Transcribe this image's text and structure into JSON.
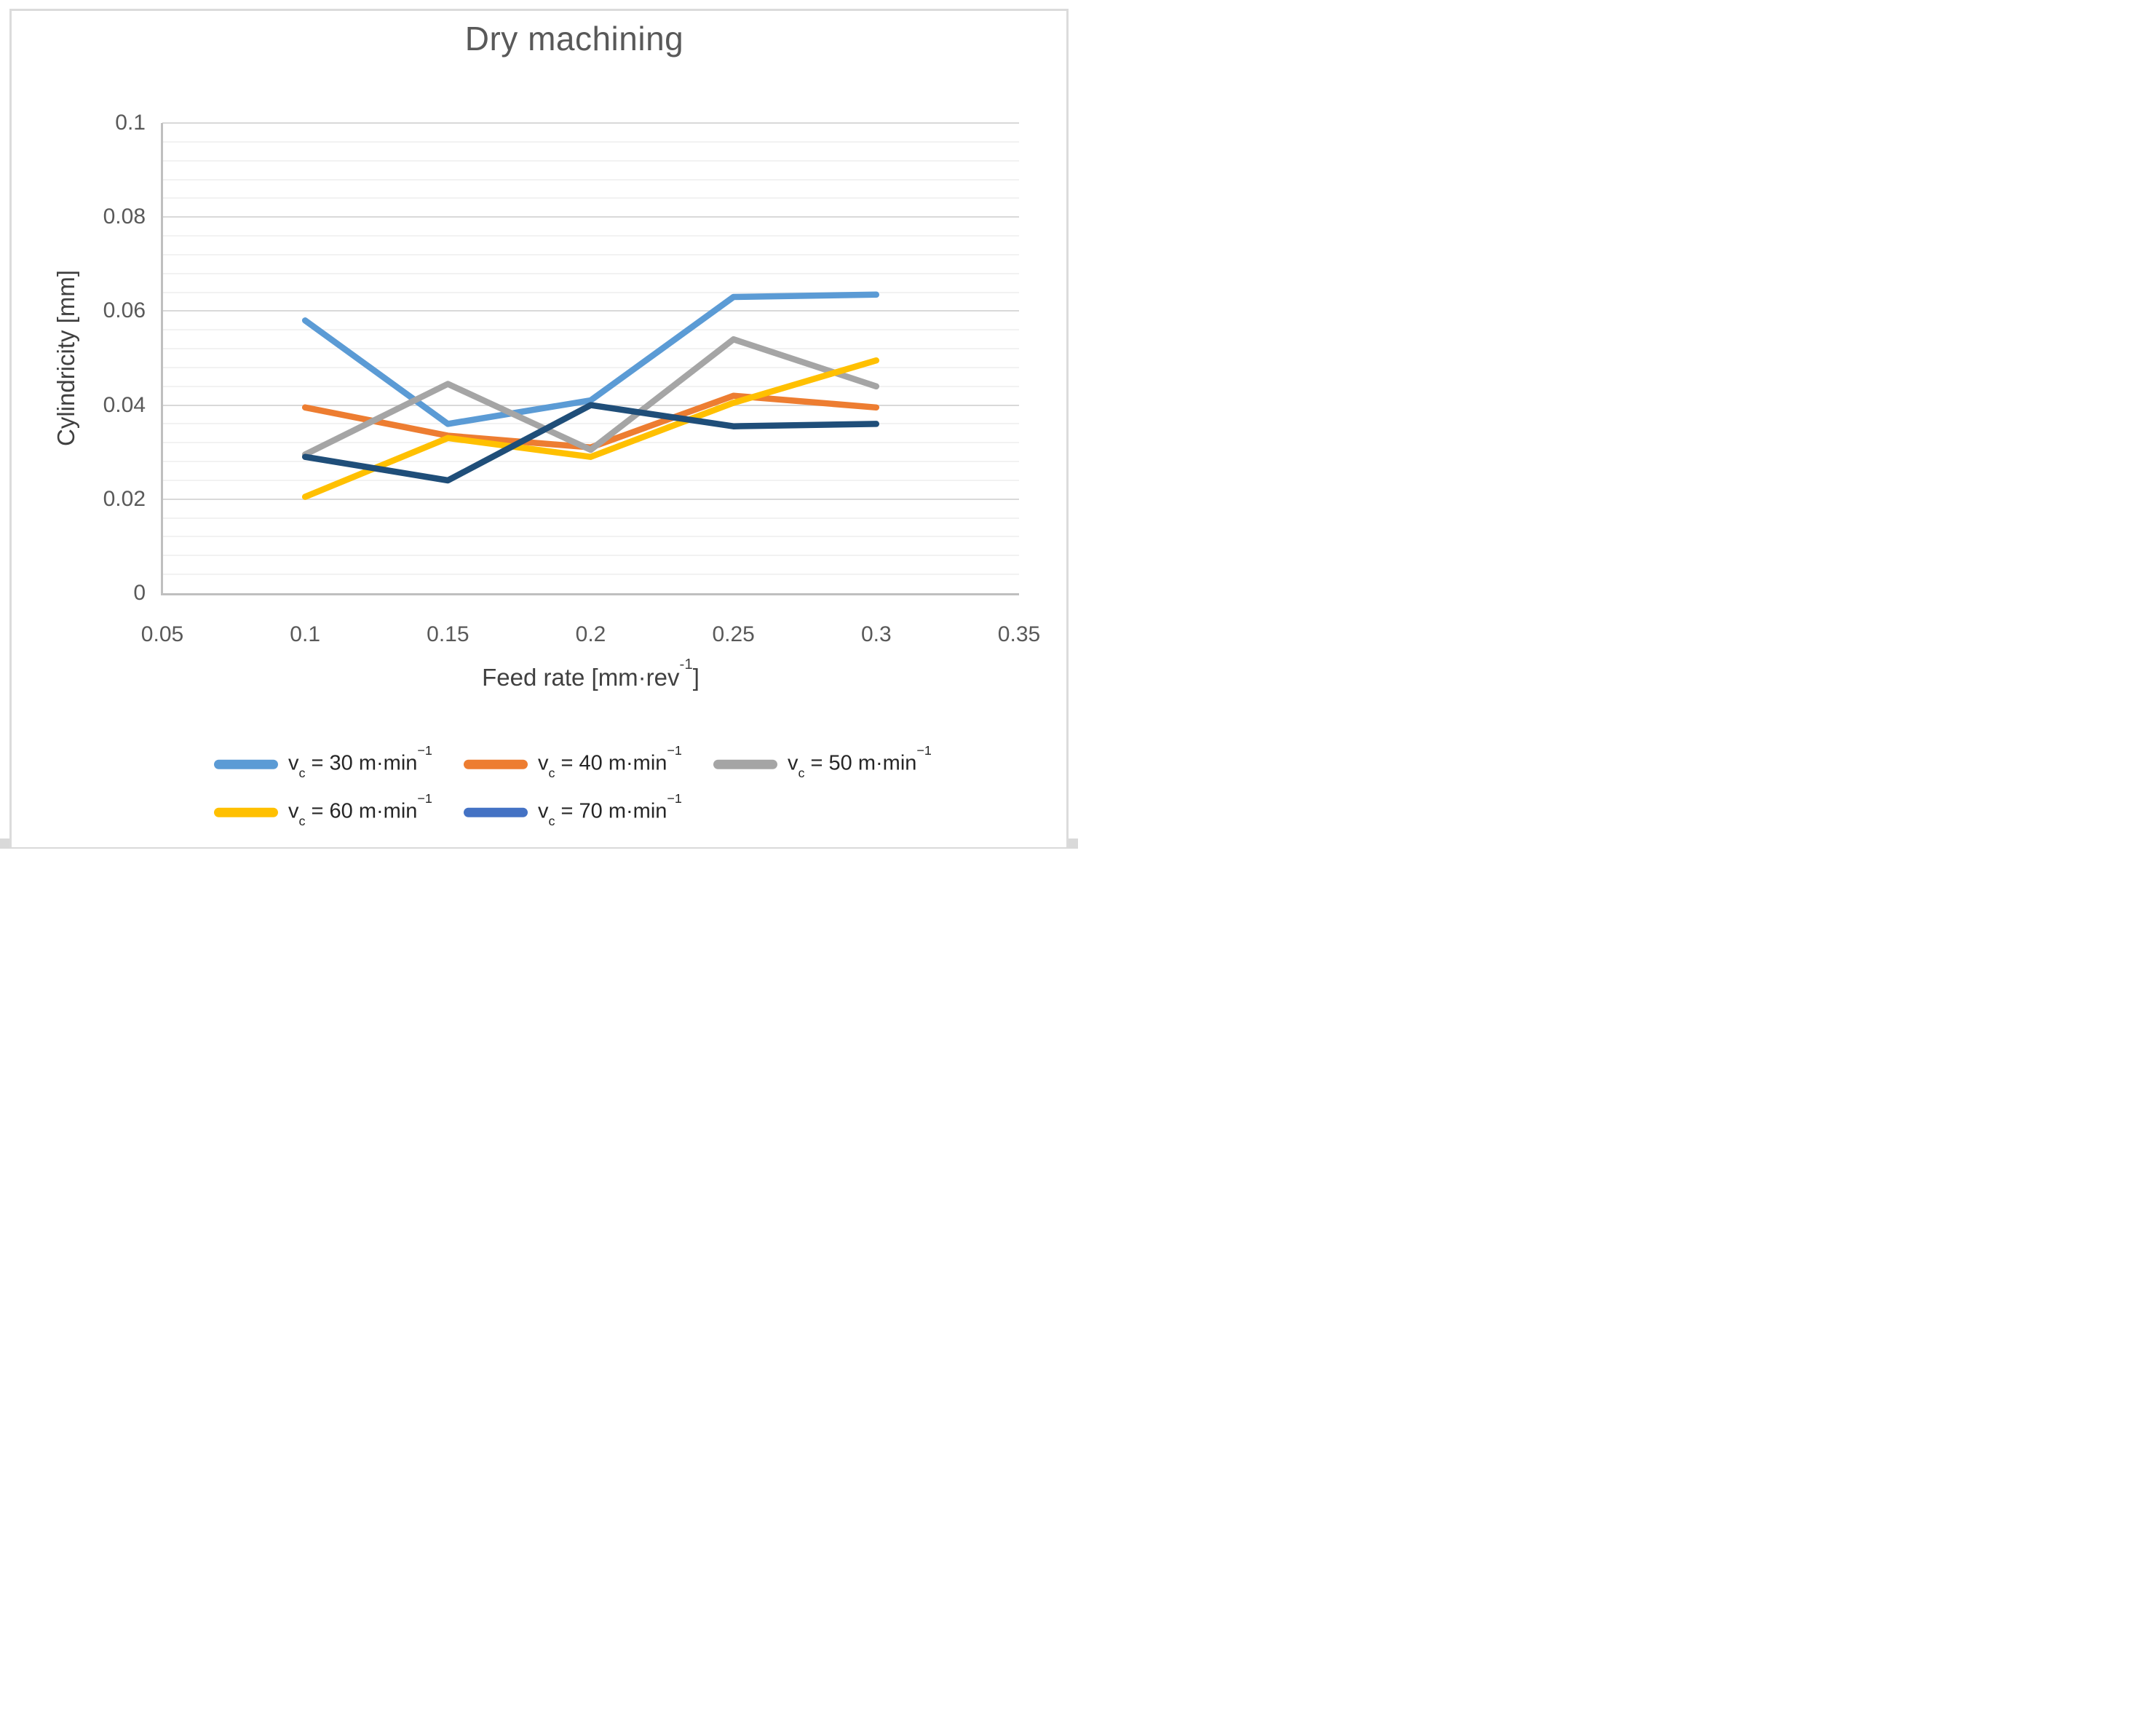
{
  "title": "Dry machining",
  "styles": {
    "title_color": "#595959",
    "tick_color": "#595959",
    "axis_title_color": "#404040",
    "legend_text_color": "#262626",
    "major_grid_color": "#D9D9D9",
    "minor_grid_color": "#F2F2F2",
    "axis_line_color": "#BFBFBF",
    "frame_border_color": "#DBDBDB",
    "bottom_bar_color": "#D9D9D9"
  },
  "chart_data": {
    "type": "line",
    "title": "Dry machining",
    "ylabel": "Cylindricity [mm]",
    "xlabel_parts": {
      "pre": "Feed rate [mm·rev",
      "sup": "-1",
      "post": "]"
    },
    "xlim": [
      0.05,
      0.35
    ],
    "ylim": [
      0,
      0.1
    ],
    "x_tick_values": [
      0.05,
      0.1,
      0.15,
      0.2,
      0.25,
      0.3,
      0.35
    ],
    "x_tick_labels": [
      "0.05",
      "0.1",
      "0.15",
      "0.2",
      "0.25",
      "0.3",
      "0.35"
    ],
    "y_tick_values": [
      0,
      0.02,
      0.04,
      0.06,
      0.08,
      0.1
    ],
    "y_tick_labels": [
      "0",
      "0.02",
      "0.04",
      "0.06",
      "0.08",
      "0.1"
    ],
    "y_major_step": 0.02,
    "y_minor_step": 0.004,
    "grid": "horizontal major and minor gridlines",
    "legend_position": "bottom",
    "x": [
      0.1,
      0.15,
      0.2,
      0.25,
      0.3
    ],
    "series": [
      {
        "id": "vc30",
        "label_parts": {
          "var": "v",
          "sub": "c",
          "mid": " = 30 m·min",
          "sup": "−1"
        },
        "cutting_speed": 30,
        "line_color": "#5B9BD5",
        "legend_color": "#5B9BD5",
        "values": [
          0.058,
          0.036,
          0.041,
          0.063,
          0.0635
        ]
      },
      {
        "id": "vc40",
        "label_parts": {
          "var": "v",
          "sub": "c",
          "mid": " = 40 m·min",
          "sup": "−1"
        },
        "cutting_speed": 40,
        "line_color": "#ED7D31",
        "legend_color": "#ED7D31",
        "values": [
          0.0395,
          0.0335,
          0.031,
          0.042,
          0.0395
        ]
      },
      {
        "id": "vc50",
        "label_parts": {
          "var": "v",
          "sub": "c",
          "mid": " = 50 m·min",
          "sup": "−1"
        },
        "cutting_speed": 50,
        "line_color": "#A5A5A5",
        "legend_color": "#A5A5A5",
        "values": [
          0.0295,
          0.0445,
          0.0305,
          0.054,
          0.044
        ]
      },
      {
        "id": "vc60",
        "label_parts": {
          "var": "v",
          "sub": "c",
          "mid": " = 60 m·min",
          "sup": "−1"
        },
        "cutting_speed": 60,
        "line_color": "#FFC000",
        "legend_color": "#FFC000",
        "values": [
          0.0205,
          0.033,
          0.029,
          0.0405,
          0.0495
        ]
      },
      {
        "id": "vc70",
        "label_parts": {
          "var": "v",
          "sub": "c",
          "mid": " = 70 m·min",
          "sup": "−1"
        },
        "cutting_speed": 70,
        "line_color": "#1F4E79",
        "legend_color": "#4472C4",
        "values": [
          0.029,
          0.024,
          0.04,
          0.0355,
          0.036
        ]
      }
    ]
  }
}
